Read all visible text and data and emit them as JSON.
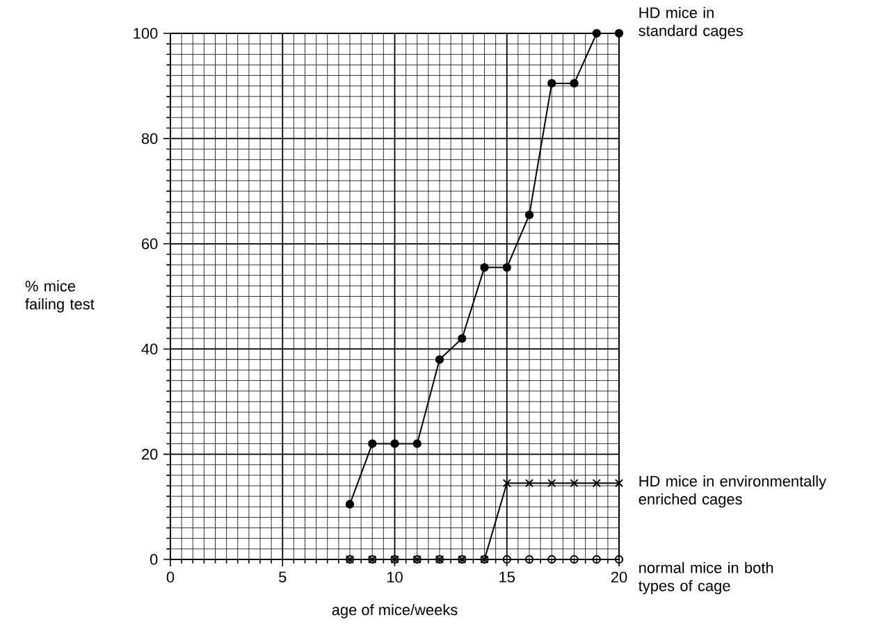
{
  "chart_data": {
    "type": "line",
    "xlabel": "age of mice/weeks",
    "ylabel": "% mice failing test",
    "xlim": [
      0,
      20
    ],
    "ylim": [
      0,
      100
    ],
    "xticks": [
      0,
      5,
      10,
      15,
      20
    ],
    "yticks": [
      0,
      20,
      40,
      60,
      80,
      100
    ],
    "grid": true,
    "series": [
      {
        "name": "normal mice in both types of cage",
        "color": "#000000",
        "marker": "circle",
        "type": "scatter",
        "x": [
          8,
          9,
          10,
          11,
          12,
          13,
          14,
          15,
          16,
          17,
          18,
          19,
          20
        ],
        "values": [
          0,
          0,
          0,
          0,
          0,
          0,
          0,
          0,
          0,
          0,
          0,
          0,
          0
        ]
      },
      {
        "name": "HD mice in environmentally enriched cages",
        "color": "#000000",
        "marker": "cross",
        "x": [
          8,
          9,
          10,
          11,
          12,
          13,
          14,
          15,
          16,
          17,
          18,
          19,
          20
        ],
        "values": [
          0,
          0,
          0,
          0,
          0,
          0,
          0,
          14.5,
          14.5,
          14.5,
          14.5,
          14.5,
          14.5
        ]
      },
      {
        "name": "HD mice in standard cages",
        "color": "#000000",
        "marker": "circle",
        "x": [
          8,
          9,
          10,
          11,
          12,
          13,
          14,
          15,
          16,
          17,
          18,
          19,
          20
        ],
        "values": [
          10.5,
          22,
          22,
          22,
          38,
          42,
          55.5,
          55.5,
          65.5,
          90.5,
          90.5,
          100,
          100
        ]
      }
    ]
  }
}
